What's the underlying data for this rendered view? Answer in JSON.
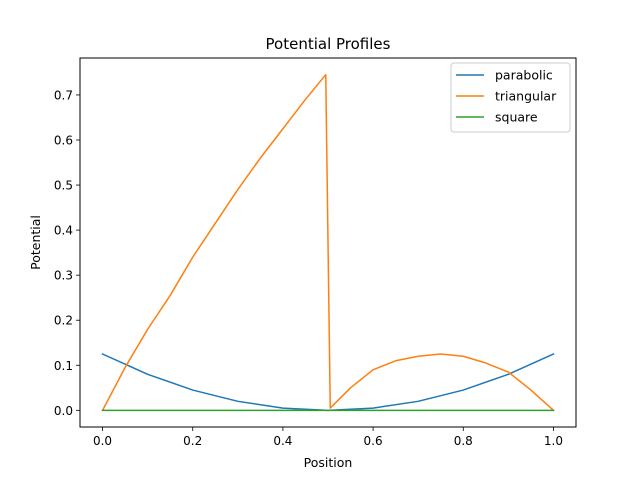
{
  "chart_data": {
    "type": "line",
    "title": "Potential Profiles",
    "xlabel": "Position",
    "ylabel": "Potential",
    "xlim": [
      -0.05,
      1.05
    ],
    "ylim": [
      -0.037,
      0.782
    ],
    "xticks": [
      0.0,
      0.2,
      0.4,
      0.6,
      0.8,
      1.0
    ],
    "xtick_labels": [
      "0.0",
      "0.2",
      "0.4",
      "0.6",
      "0.8",
      "1.0"
    ],
    "yticks": [
      0.0,
      0.1,
      0.2,
      0.3,
      0.4,
      0.5,
      0.6,
      0.7
    ],
    "ytick_labels": [
      "0.0",
      "0.1",
      "0.2",
      "0.3",
      "0.4",
      "0.5",
      "0.6",
      "0.7"
    ],
    "grid": false,
    "legend_position": "top-right",
    "series": [
      {
        "name": "parabolic",
        "color": "#1f77b4",
        "x": [
          0.0,
          0.1,
          0.2,
          0.3,
          0.4,
          0.5,
          0.6,
          0.7,
          0.8,
          0.9,
          1.0
        ],
        "y": [
          0.125,
          0.08,
          0.045,
          0.02,
          0.005,
          0.0,
          0.005,
          0.02,
          0.045,
          0.08,
          0.125
        ]
      },
      {
        "name": "triangular",
        "color": "#ff7f0e",
        "x": [
          0.0,
          0.05,
          0.1,
          0.15,
          0.2,
          0.25,
          0.3,
          0.35,
          0.4,
          0.45,
          0.495,
          0.505,
          0.55,
          0.6,
          0.65,
          0.7,
          0.75,
          0.8,
          0.85,
          0.9,
          0.95,
          1.0
        ],
        "y": [
          0.0,
          0.095,
          0.18,
          0.255,
          0.34,
          0.415,
          0.49,
          0.56,
          0.625,
          0.69,
          0.745,
          0.005,
          0.05,
          0.09,
          0.11,
          0.12,
          0.125,
          0.12,
          0.105,
          0.085,
          0.045,
          0.0
        ]
      },
      {
        "name": "square",
        "color": "#2ca02c",
        "x": [
          0.0,
          1.0
        ],
        "y": [
          0.0,
          0.0
        ]
      }
    ]
  }
}
